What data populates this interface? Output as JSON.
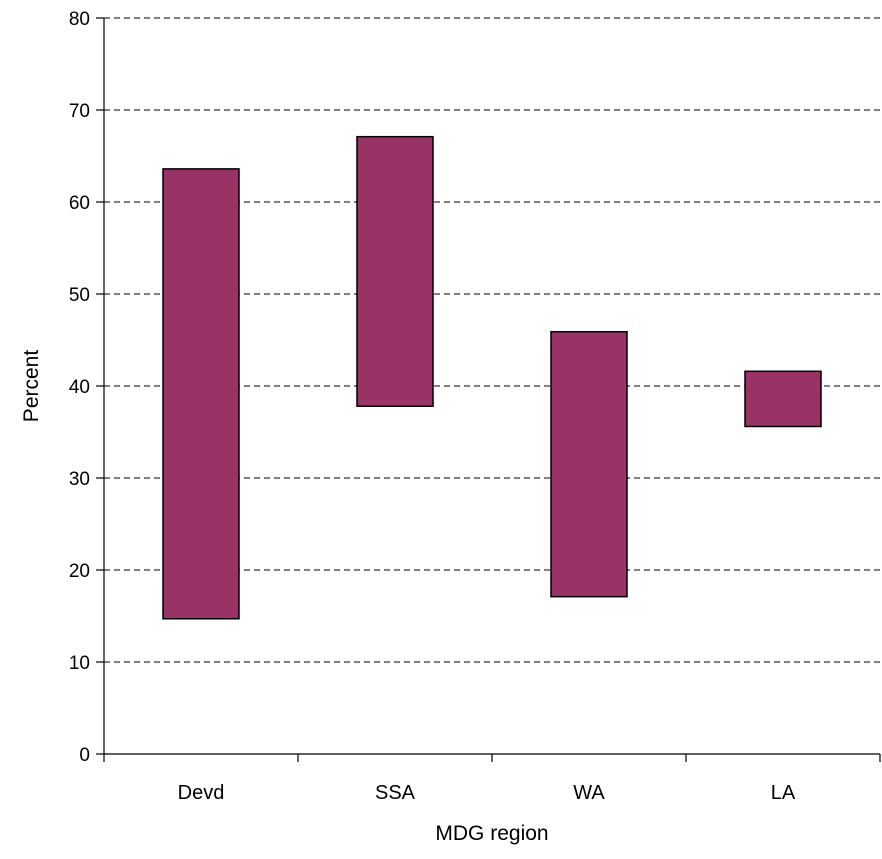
{
  "chart_data": {
    "type": "bar",
    "subtype": "floating-range",
    "title": "",
    "xlabel": "MDG region",
    "ylabel": "Percent",
    "categories": [
      "Devd",
      "SSA",
      "WA",
      "LA"
    ],
    "series": [
      {
        "low": [
          14.7,
          37.8,
          17.1,
          35.6
        ],
        "high": [
          63.6,
          67.1,
          45.9,
          41.6
        ]
      }
    ],
    "ylim": [
      0,
      80
    ],
    "yticks": [
      "0",
      "10",
      "20",
      "30",
      "40",
      "50",
      "60",
      "70",
      "80"
    ],
    "grid": "horizontal dashed",
    "legend": "none",
    "bar_color": "#993366"
  }
}
